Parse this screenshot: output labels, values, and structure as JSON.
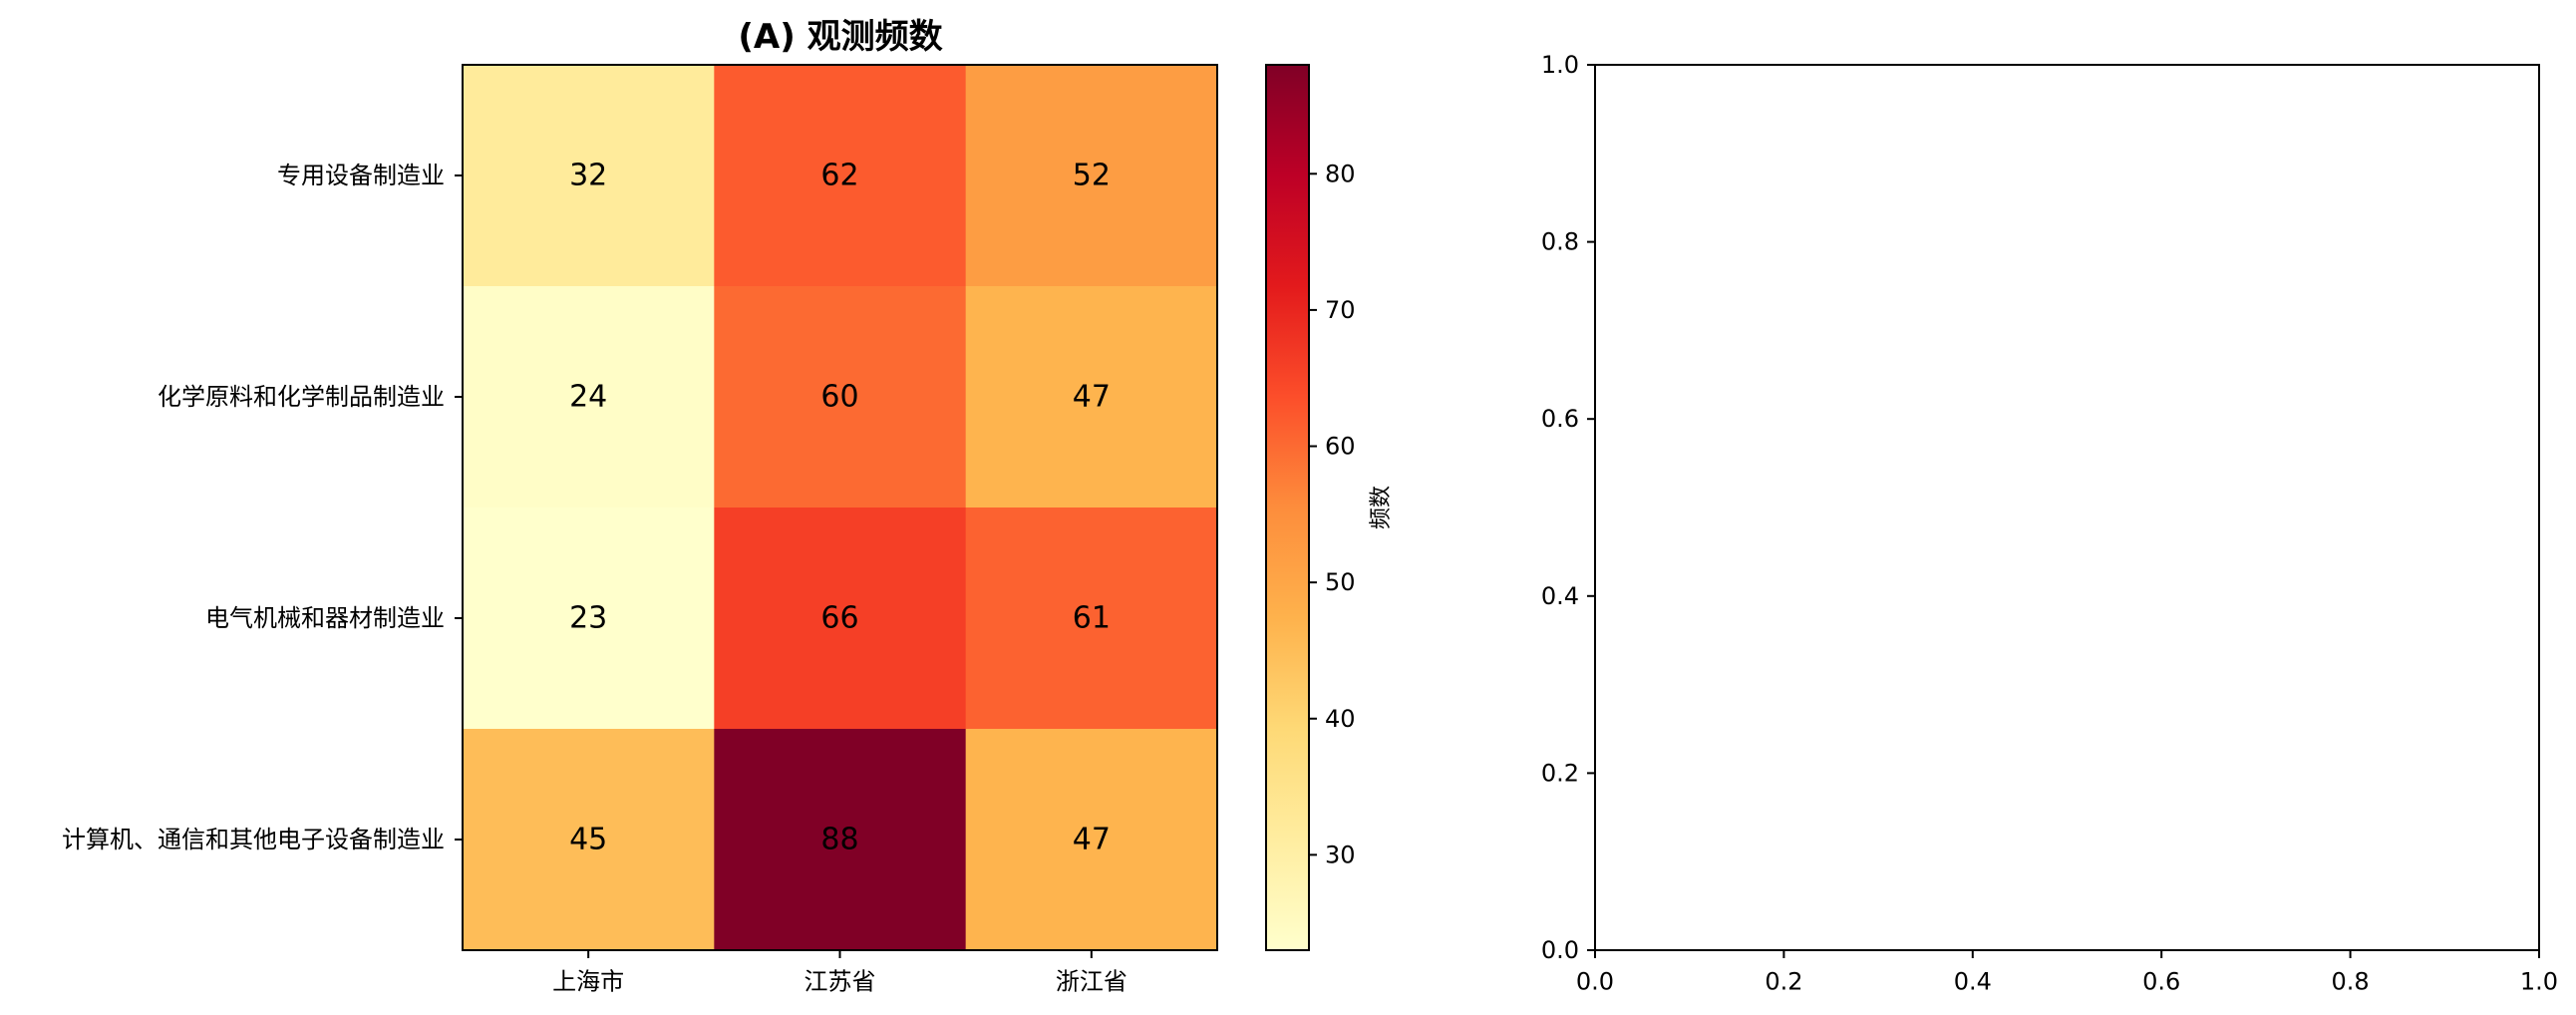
{
  "chart_data": [
    {
      "type": "heatmap",
      "title": "(A) 观测频数",
      "rows": [
        "专用设备制造业",
        "化学原料和化学制品制造业",
        "电气机械和器材制造业",
        "计算机、通信和其他电子设备制造业"
      ],
      "columns": [
        "上海市",
        "江苏省",
        "浙江省"
      ],
      "values": [
        [
          32,
          62,
          52
        ],
        [
          24,
          60,
          47
        ],
        [
          23,
          66,
          61
        ],
        [
          45,
          88,
          47
        ]
      ],
      "colormap": "YlOrRd",
      "colorbar": {
        "label": "频数",
        "range": [
          23,
          88
        ],
        "ticks": [
          30,
          40,
          50,
          60,
          70,
          80
        ]
      }
    },
    {
      "type": "scatter",
      "title": "",
      "x": [],
      "y": [],
      "xlim": [
        0.0,
        1.0
      ],
      "ylim": [
        0.0,
        1.0
      ],
      "xticks": [
        "0.0",
        "0.2",
        "0.4",
        "0.6",
        "0.8",
        "1.0"
      ],
      "yticks": [
        "0.0",
        "0.2",
        "0.4",
        "0.6",
        "0.8",
        "1.0"
      ],
      "grid": false
    }
  ]
}
